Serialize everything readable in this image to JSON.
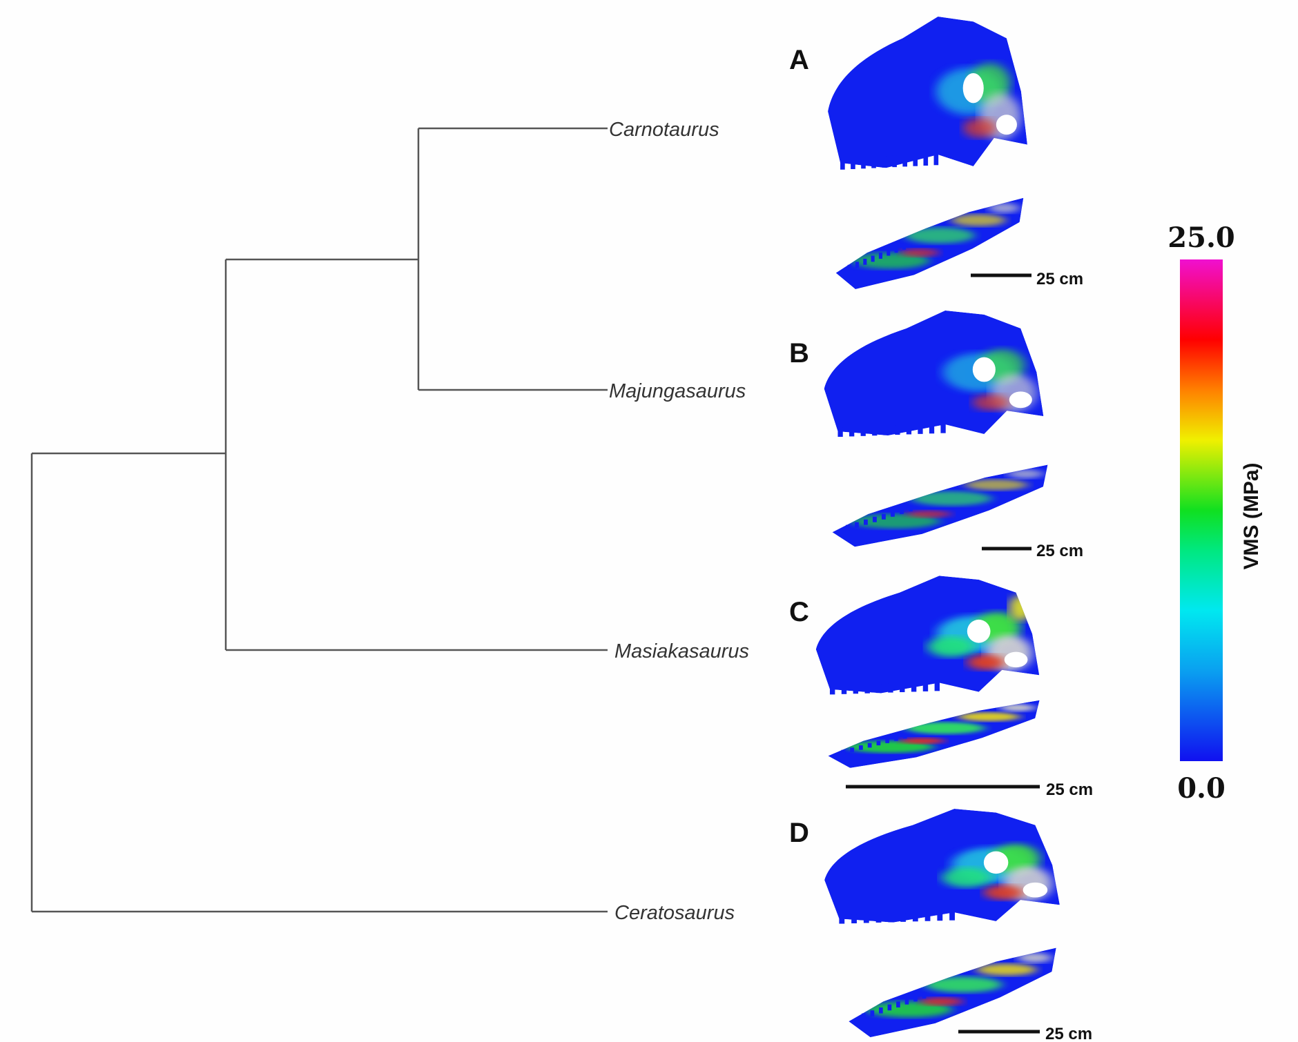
{
  "tree": {
    "taxa": [
      "Carnotaurus",
      "Majungasaurus",
      "Masiakasaurus",
      "Ceratosaurus"
    ],
    "topology": "(((Carnotaurus,Majungasaurus),Masiakasaurus),Ceratosaurus)",
    "line_color": "#555555"
  },
  "panels": [
    {
      "label": "A",
      "taxon": "Carnotaurus",
      "scale_bar": "25 cm"
    },
    {
      "label": "B",
      "taxon": "Majungasaurus",
      "scale_bar": "25 cm"
    },
    {
      "label": "C",
      "taxon": "Masiakasaurus",
      "scale_bar": "25 cm"
    },
    {
      "label": "D",
      "taxon": "Ceratosaurus",
      "scale_bar": "25 cm"
    }
  ],
  "colorbar": {
    "title": "VMS (MPa)",
    "max": "25.0",
    "min": "0.0",
    "colors": [
      "#1010f0",
      "#00e8f0",
      "#10e020",
      "#f0f000",
      "#ff8000",
      "#ff0000",
      "#f010d0"
    ]
  }
}
